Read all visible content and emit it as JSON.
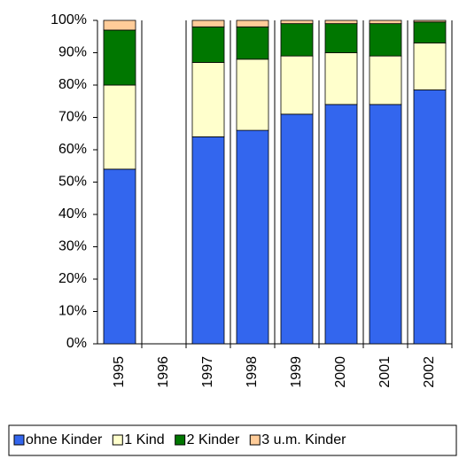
{
  "chart_data": {
    "type": "bar",
    "stacked": true,
    "categories": [
      "1995",
      "1996",
      "1997",
      "1998",
      "1999",
      "2000",
      "2001",
      "2002"
    ],
    "series": [
      {
        "name": "ohne Kinder",
        "color": "#3366ee",
        "values": [
          54,
          null,
          64,
          66,
          71,
          74,
          74,
          78.5
        ]
      },
      {
        "name": "1 Kind",
        "color": "#ffffcc",
        "values": [
          26,
          null,
          23,
          22,
          18,
          16,
          15,
          14.5
        ]
      },
      {
        "name": "2 Kinder",
        "color": "#007700",
        "values": [
          17,
          null,
          11,
          10,
          10,
          9,
          10,
          6.5
        ]
      },
      {
        "name": "3 u.m. Kinder",
        "color": "#ffcc99",
        "values": [
          3,
          null,
          2,
          2,
          1,
          1,
          1,
          0.5
        ]
      }
    ],
    "ylim": [
      0,
      100
    ],
    "yticks": [
      {
        "value": 0,
        "label": "0%"
      },
      {
        "value": 10,
        "label": "10%"
      },
      {
        "value": 20,
        "label": "20%"
      },
      {
        "value": 30,
        "label": "30%"
      },
      {
        "value": 40,
        "label": "40%"
      },
      {
        "value": 50,
        "label": "50%"
      },
      {
        "value": 60,
        "label": "60%"
      },
      {
        "value": 70,
        "label": "70%"
      },
      {
        "value": 80,
        "label": "80%"
      },
      {
        "value": 90,
        "label": "90%"
      },
      {
        "value": 100,
        "label": "100%"
      }
    ]
  }
}
